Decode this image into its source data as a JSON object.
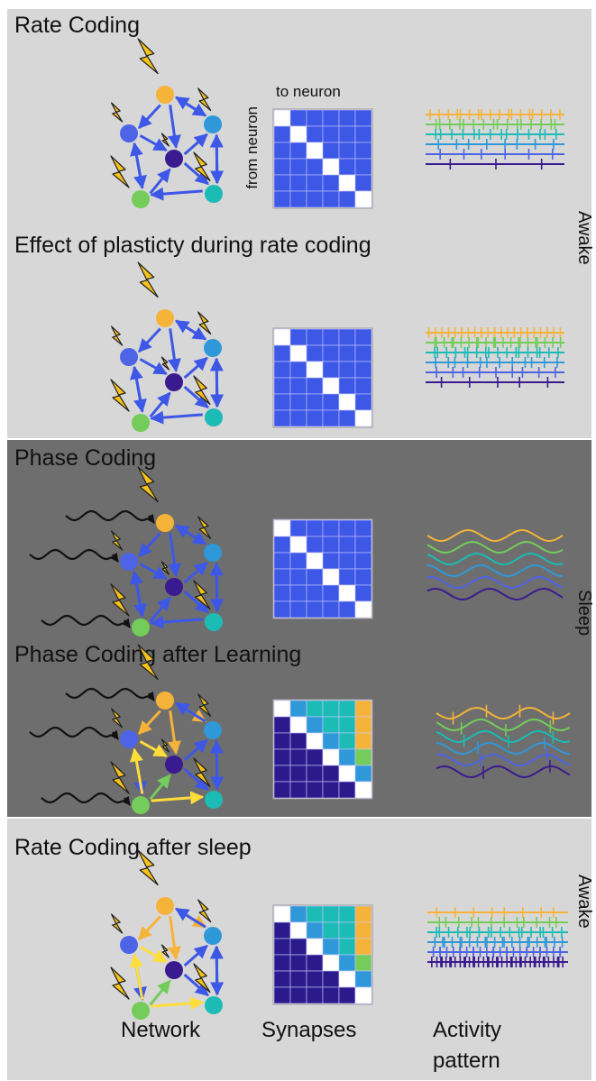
{
  "sections": {
    "rate_coding": "Rate Coding",
    "plasticity": "Effect of plasticty during rate coding",
    "phase_coding": "Phase Coding",
    "phase_learning": "Phase Coding after Learning",
    "rate_after_sleep": "Rate Coding after sleep"
  },
  "axis": {
    "to_neuron": "to neuron",
    "from_neuron": "from neuron"
  },
  "states": {
    "awake_1": "Awake",
    "sleep": "Sleep",
    "awake_2": "Awake"
  },
  "columns": {
    "network": "Network",
    "synapses": "Synapses",
    "activity_line1": "Activity",
    "activity_line2": "pattern"
  },
  "colors": {
    "light_band": "#d7d7d7",
    "dark_band": "#6e6e6e",
    "neuron_1": "#f5b33a",
    "neuron_2": "#2f98d8",
    "neuron_3": "#4d64e6",
    "neuron_4": "#3a1b8f",
    "neuron_5": "#74cc5a",
    "neuron_6": "#1cbbb6",
    "weak_synapse": "#3d57e6",
    "strong_synapse": "#ffdd3a",
    "lightning": "#f8c21a"
  }
}
